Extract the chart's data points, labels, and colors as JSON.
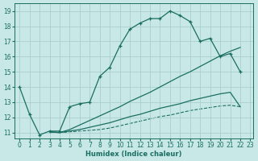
{
  "bg_color": "#c8e8e8",
  "line_color": "#1a6e60",
  "grid_color": "#aacece",
  "xlabel": "Humidex (Indice chaleur)",
  "xlim_min": -0.5,
  "xlim_max": 23.3,
  "ylim_min": 10.6,
  "ylim_max": 19.5,
  "yticks": [
    11,
    12,
    13,
    14,
    15,
    16,
    17,
    18,
    19
  ],
  "xticks": [
    0,
    1,
    2,
    3,
    4,
    5,
    6,
    7,
    8,
    9,
    10,
    11,
    12,
    13,
    14,
    15,
    16,
    17,
    18,
    19,
    20,
    21,
    22,
    23
  ],
  "curve1_x": [
    0,
    1,
    2,
    3,
    4,
    5,
    6,
    7,
    8,
    9,
    10,
    11,
    12,
    13,
    14,
    15,
    16,
    17,
    18,
    19,
    20,
    21,
    22
  ],
  "curve1_y": [
    14.0,
    12.2,
    10.85,
    11.1,
    11.1,
    12.7,
    12.9,
    13.0,
    14.7,
    15.3,
    16.7,
    17.8,
    18.2,
    18.5,
    18.5,
    19.0,
    18.7,
    18.3,
    17.0,
    17.2,
    16.0,
    16.2,
    15.0
  ],
  "curve2_x": [
    3,
    4,
    5,
    6,
    7,
    8,
    9,
    10,
    11,
    12,
    13,
    14,
    15,
    16,
    17,
    18,
    19,
    20,
    21,
    22
  ],
  "curve2_y": [
    11.05,
    11.0,
    11.1,
    11.2,
    11.35,
    11.5,
    11.65,
    11.85,
    12.05,
    12.2,
    12.4,
    12.6,
    12.75,
    12.9,
    13.1,
    13.25,
    13.4,
    13.55,
    13.65,
    12.7
  ],
  "curve3_x": [
    3,
    4,
    5,
    6,
    7,
    8,
    9,
    10,
    11,
    12,
    13,
    14,
    15,
    16,
    17,
    18,
    19,
    20,
    21,
    22
  ],
  "curve3_y": [
    11.05,
    11.0,
    11.2,
    11.5,
    11.8,
    12.1,
    12.4,
    12.7,
    13.05,
    13.35,
    13.65,
    14.0,
    14.35,
    14.7,
    15.0,
    15.35,
    15.7,
    16.05,
    16.35,
    16.6
  ],
  "curve4_x": [
    3,
    4,
    5,
    6,
    7,
    8,
    9,
    10,
    11,
    12,
    13,
    14,
    15,
    16,
    17,
    18,
    19,
    20,
    21,
    22
  ],
  "curve4_y": [
    11.05,
    11.0,
    11.05,
    11.1,
    11.15,
    11.2,
    11.3,
    11.45,
    11.6,
    11.75,
    11.9,
    12.05,
    12.15,
    12.3,
    12.45,
    12.55,
    12.65,
    12.75,
    12.8,
    12.7
  ]
}
